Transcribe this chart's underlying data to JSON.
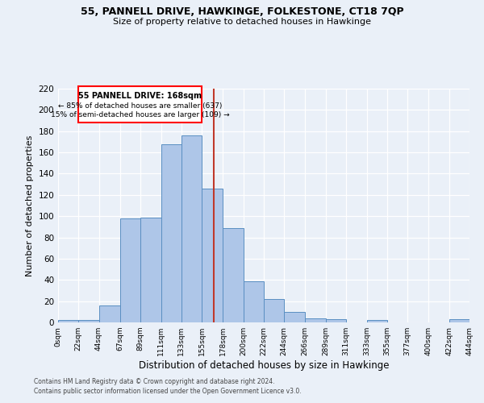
{
  "title1": "55, PANNELL DRIVE, HAWKINGE, FOLKESTONE, CT18 7QP",
  "title2": "Size of property relative to detached houses in Hawkinge",
  "xlabel": "Distribution of detached houses by size in Hawkinge",
  "ylabel": "Number of detached properties",
  "footnote1": "Contains HM Land Registry data © Crown copyright and database right 2024.",
  "footnote2": "Contains public sector information licensed under the Open Government Licence v3.0.",
  "annotation_line1": "55 PANNELL DRIVE: 168sqm",
  "annotation_line2": "← 85% of detached houses are smaller (637)",
  "annotation_line3": "15% of semi-detached houses are larger (109) →",
  "property_size": 168,
  "bar_edges": [
    0,
    22,
    44,
    67,
    89,
    111,
    133,
    155,
    178,
    200,
    222,
    244,
    266,
    289,
    311,
    333,
    355,
    377,
    400,
    422,
    444
  ],
  "bar_heights": [
    2,
    2,
    16,
    98,
    99,
    168,
    176,
    126,
    89,
    39,
    22,
    10,
    4,
    3,
    0,
    2,
    0,
    0,
    0,
    3
  ],
  "bar_color": "#aec6e8",
  "bar_edge_color": "#5a8fc2",
  "vline_color": "#c0392b",
  "background_color": "#eaf0f8",
  "axes_bg_color": "#eaf0f8",
  "ylim": [
    0,
    220
  ],
  "yticks": [
    0,
    20,
    40,
    60,
    80,
    100,
    120,
    140,
    160,
    180,
    200,
    220
  ],
  "xtick_labels": [
    "0sqm",
    "22sqm",
    "44sqm",
    "67sqm",
    "89sqm",
    "111sqm",
    "133sqm",
    "155sqm",
    "178sqm",
    "200sqm",
    "222sqm",
    "244sqm",
    "266sqm",
    "289sqm",
    "311sqm",
    "333sqm",
    "355sqm",
    "377sqm",
    "400sqm",
    "422sqm",
    "444sqm"
  ]
}
